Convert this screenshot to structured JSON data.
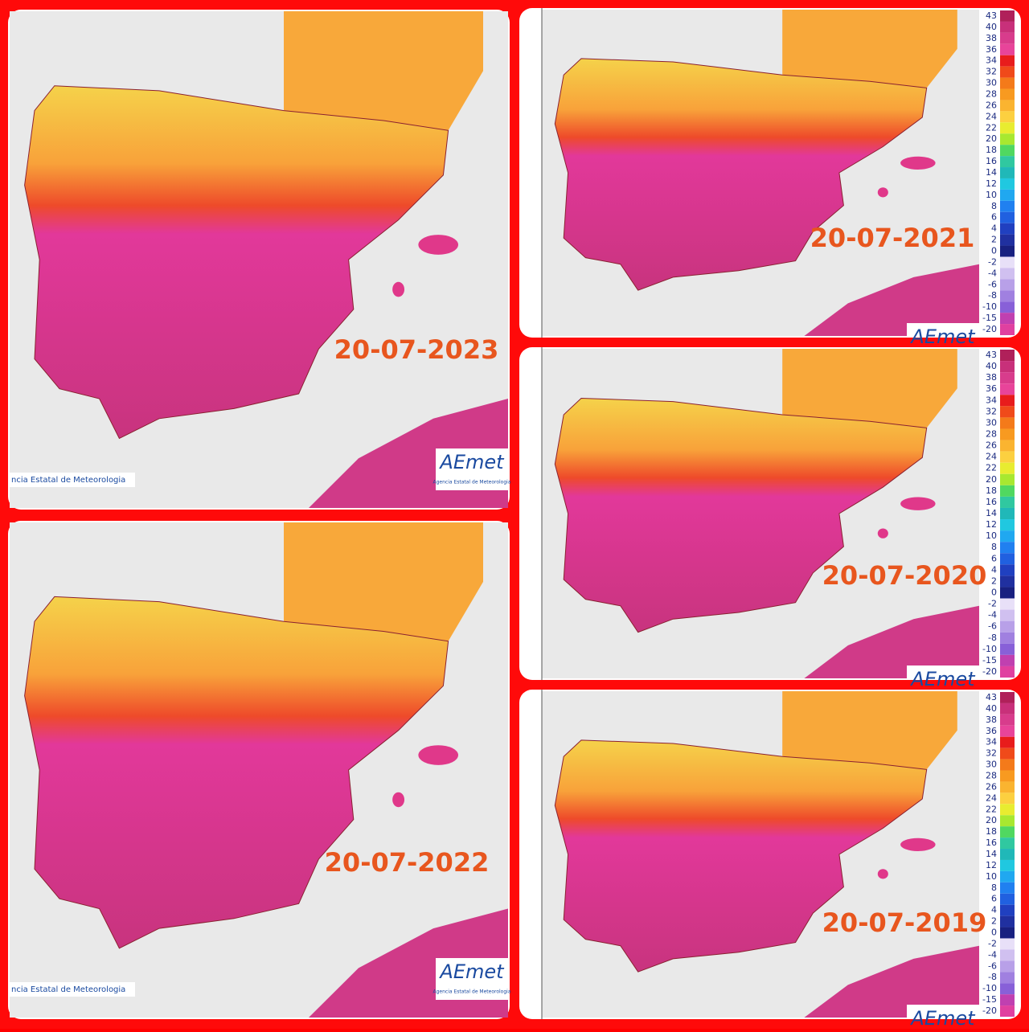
{
  "panels": [
    {
      "date": "20-07-2023",
      "credit": "ncia Estatal de Meteorologia",
      "logo": "AEmet",
      "logo_sub": "Agencia Estatal de Meteorologia"
    },
    {
      "date": "20-07-2022",
      "credit": "ncia Estatal de Meteorologia",
      "logo": "AEmet",
      "logo_sub": "Agencia Estatal de Meteorologia"
    },
    {
      "date": "20-07-2021",
      "logo": "AEmet"
    },
    {
      "date": "20-07-2020",
      "logo": "AEmet"
    },
    {
      "date": "20-07-2019",
      "logo": "AEmet"
    }
  ],
  "legend": [
    {
      "label": "43",
      "color": "#b0205a"
    },
    {
      "label": "40",
      "color": "#c8307a"
    },
    {
      "label": "38",
      "color": "#d83c8c"
    },
    {
      "label": "36",
      "color": "#e8449a"
    },
    {
      "label": "34",
      "color": "#e81c1c"
    },
    {
      "label": "32",
      "color": "#f04a1a"
    },
    {
      "label": "30",
      "color": "#f47a1a"
    },
    {
      "label": "28",
      "color": "#f89a20"
    },
    {
      "label": "26",
      "color": "#fab430"
    },
    {
      "label": "24",
      "color": "#fcd040"
    },
    {
      "label": "22",
      "color": "#e8ec30"
    },
    {
      "label": "20",
      "color": "#a8e830"
    },
    {
      "label": "18",
      "color": "#50d860"
    },
    {
      "label": "16",
      "color": "#30c8a0"
    },
    {
      "label": "14",
      "color": "#20b8b8"
    },
    {
      "label": "12",
      "color": "#20c8e0"
    },
    {
      "label": "10",
      "color": "#20a8f0"
    },
    {
      "label": "8",
      "color": "#2080f0"
    },
    {
      "label": "6",
      "color": "#2060e0"
    },
    {
      "label": "4",
      "color": "#2040c0"
    },
    {
      "label": "2",
      "color": "#2030a0"
    },
    {
      "label": "0",
      "color": "#182080"
    },
    {
      "label": "-2",
      "color": "#e8e0f8"
    },
    {
      "label": "-4",
      "color": "#d0c0f0"
    },
    {
      "label": "-6",
      "color": "#b8a0e8"
    },
    {
      "label": "-8",
      "color": "#a080e0"
    },
    {
      "label": "-10",
      "color": "#8860d8"
    },
    {
      "label": "-15",
      "color": "#c040b0"
    },
    {
      "label": "-20",
      "color": "#e040a0"
    }
  ]
}
